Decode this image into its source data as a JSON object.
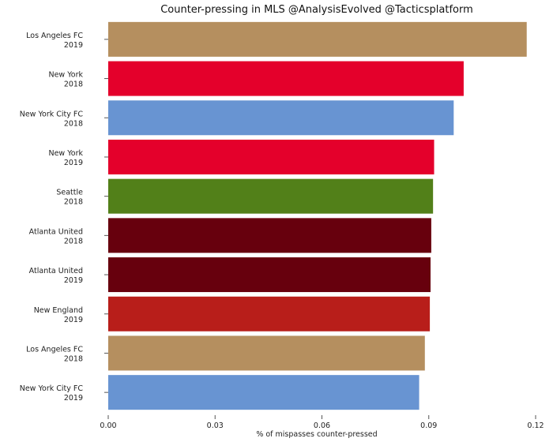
{
  "chart_data": {
    "type": "bar",
    "orientation": "horizontal",
    "title": "Counter-pressing in MLS @AnalysisEvolved @Tacticsplatform",
    "xlabel": "% of mispasses counter-pressed",
    "ylabel": "",
    "xlim": [
      0.0,
      0.12
    ],
    "x_ticks": [
      "0.00",
      "0.03",
      "0.06",
      "0.09",
      "0.12"
    ],
    "x_tick_values": [
      0.0,
      0.03,
      0.06,
      0.09,
      0.12
    ],
    "grid": false,
    "categories": [
      {
        "team": "Los Angeles FC",
        "season": "2019"
      },
      {
        "team": "New York",
        "season": "2018"
      },
      {
        "team": "New York City FC",
        "season": "2018"
      },
      {
        "team": "New York",
        "season": "2019"
      },
      {
        "team": "Seattle",
        "season": "2018"
      },
      {
        "team": "Atlanta United",
        "season": "2018"
      },
      {
        "team": "Atlanta United",
        "season": "2019"
      },
      {
        "team": "New England",
        "season": "2019"
      },
      {
        "team": "Los Angeles FC",
        "season": "2018"
      },
      {
        "team": "New York City FC",
        "season": "2019"
      }
    ],
    "values": [
      0.1175,
      0.0998,
      0.097,
      0.0915,
      0.0912,
      0.0907,
      0.0905,
      0.0903,
      0.0889,
      0.0873
    ],
    "colors": [
      "#b58f5f",
      "#e4002b",
      "#6894d2",
      "#e4002b",
      "#528019",
      "#67000d",
      "#67000d",
      "#b81e1a",
      "#b58f5f",
      "#6894d2"
    ]
  }
}
